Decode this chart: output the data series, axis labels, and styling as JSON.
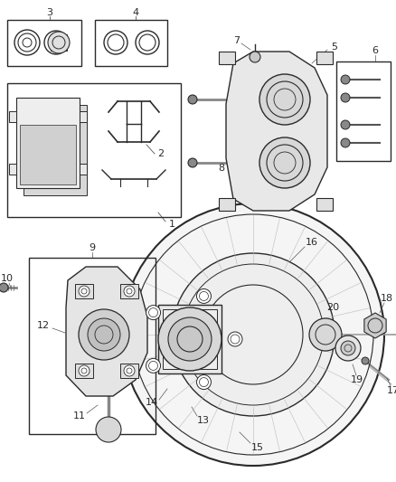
{
  "bg_color": "#ffffff",
  "line_color": "#2a2a2a",
  "figsize": [
    4.38,
    5.33
  ],
  "dpi": 100,
  "xlim": [
    0,
    438
  ],
  "ylim": [
    0,
    533
  ]
}
